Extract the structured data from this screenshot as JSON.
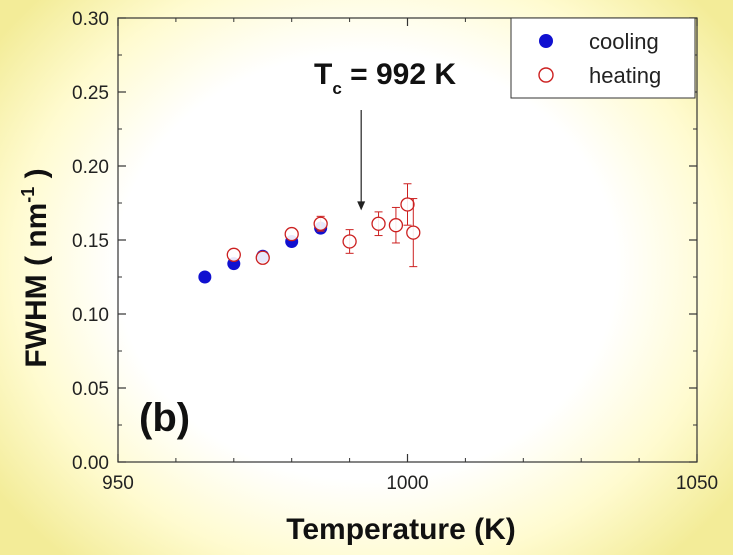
{
  "chart_data": {
    "type": "scatter",
    "xlabel": "Temperature  (K)",
    "ylabel": "FWHM  ( nm",
    "ylabel_sup": "-1",
    "ylabel_end": " )",
    "xlim": [
      950,
      1050
    ],
    "ylim": [
      0.0,
      0.3
    ],
    "x_ticks": [
      950,
      1000,
      1050
    ],
    "x_tick_labels": [
      "950",
      "1000",
      "1050"
    ],
    "y_ticks": [
      0.0,
      0.05,
      0.1,
      0.15,
      0.2,
      0.25,
      0.3
    ],
    "y_tick_labels": [
      "0.00",
      "0.05",
      "0.10",
      "0.15",
      "0.20",
      "0.25",
      "0.30"
    ],
    "grid": false,
    "legend_position": "top-right",
    "series": [
      {
        "name": "cooling",
        "marker": "filled-circle",
        "color": "#1010d0",
        "points": [
          {
            "x": 965,
            "y": 0.125
          },
          {
            "x": 970,
            "y": 0.134
          },
          {
            "x": 975,
            "y": 0.139
          },
          {
            "x": 980,
            "y": 0.149
          },
          {
            "x": 985,
            "y": 0.158
          }
        ]
      },
      {
        "name": "heating",
        "marker": "open-circle",
        "color": "#cc2020",
        "points": [
          {
            "x": 970,
            "y": 0.14,
            "err": 0.0
          },
          {
            "x": 975,
            "y": 0.138,
            "err": 0.0
          },
          {
            "x": 980,
            "y": 0.154,
            "err": 0.0
          },
          {
            "x": 985,
            "y": 0.161,
            "err": 0.005
          },
          {
            "x": 990,
            "y": 0.149,
            "err": 0.008
          },
          {
            "x": 995,
            "y": 0.161,
            "err": 0.008
          },
          {
            "x": 998,
            "y": 0.16,
            "err": 0.012
          },
          {
            "x": 1000,
            "y": 0.174,
            "err": 0.014
          },
          {
            "x": 1001,
            "y": 0.155,
            "err": 0.023
          }
        ]
      }
    ],
    "annotations": {
      "tc_text": "T",
      "tc_sub": "c",
      "tc_value": " = 992 K",
      "tc_x": 992,
      "tc_arrow_to_y": 0.17,
      "panel_label": "(b)"
    }
  }
}
